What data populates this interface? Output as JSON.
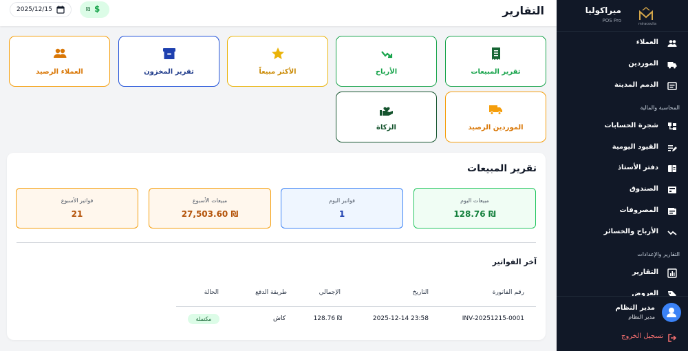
{
  "header": {
    "title": "التقارير",
    "date": "2025/12/15",
    "currency_symbol": "₪",
    "currency_dollar": "$"
  },
  "sidebar": {
    "brand_name": "ميراكوليا",
    "brand_sub": "POS Pro",
    "logo_text": "miracoulia",
    "items_top": [
      {
        "label": "العملاء",
        "icon": "users-icon"
      },
      {
        "label": "الموردين",
        "icon": "truck-icon"
      },
      {
        "label": "الذمم المدينة",
        "icon": "card-icon"
      }
    ],
    "section_finance": "المحاسبة والمالية",
    "items_finance": [
      {
        "label": "شجرة الحسابات",
        "icon": "tree-icon"
      },
      {
        "label": "القيود اليومية",
        "icon": "edit-icon"
      },
      {
        "label": "دفتر الأستاذ",
        "icon": "book-icon"
      },
      {
        "label": "الصندوق",
        "icon": "cash-icon"
      },
      {
        "label": "المصروفات",
        "icon": "wallet-icon"
      },
      {
        "label": "الأرباح والخسائر",
        "icon": "trend-icon"
      }
    ],
    "section_reports": "التقارير والإعدادات",
    "items_reports": [
      {
        "label": "التقارير",
        "icon": "chart-icon"
      },
      {
        "label": "العروض",
        "icon": "tag-icon"
      }
    ],
    "user_name": "مدير النظام",
    "user_role": "مدير النظام",
    "logout": "تسجيل الخروج"
  },
  "report_cards": [
    {
      "label": "تقرير المبيعات",
      "color": "#16a34a"
    },
    {
      "label": "الأرباح",
      "color": "#16a34a"
    },
    {
      "label": "الأكثر مبيعاً",
      "color": "#eab308"
    },
    {
      "label": "تقرير المخزون",
      "color": "#1d4ed8"
    },
    {
      "label": "العملاء الرصيد",
      "color": "#f59e0b"
    },
    {
      "label": "الموردين الرصيد",
      "color": "#f59e0b"
    },
    {
      "label": "الزكاة",
      "color": "#14532d"
    }
  ],
  "sales_report": {
    "title": "تقرير المبيعات",
    "stats": [
      {
        "label": "مبيعات اليوم",
        "value": "128.76 ₪"
      },
      {
        "label": "فواتير اليوم",
        "value": "1"
      },
      {
        "label": "مبيعات الأسبوع",
        "value": "27,503.60 ₪"
      },
      {
        "label": "فواتير الأسبوع",
        "value": "21"
      }
    ],
    "latest_title": "آخر الفواتير",
    "columns": [
      "رقم الفاتورة",
      "التاريخ",
      "الإجمالي",
      "طريقة الدفع",
      "الحالة"
    ],
    "rows": [
      {
        "invoice": "INV-20251215-0001",
        "date": "2025-12-14 23:58",
        "total": "128.76 ₪",
        "payment": "كاش",
        "status": "مكتملة"
      }
    ]
  }
}
